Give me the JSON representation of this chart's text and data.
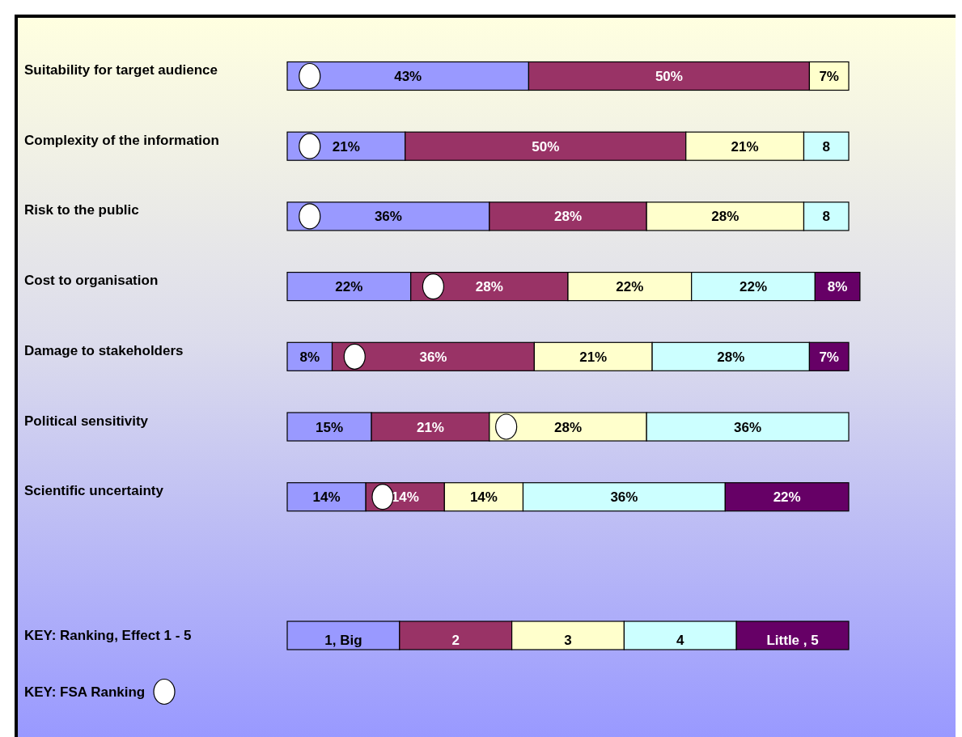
{
  "chart_data": {
    "type": "bar",
    "orientation": "horizontal",
    "stacked": true,
    "categories": [
      "Suitability for target audience",
      "Complexity of the information",
      "Risk to the public",
      "Cost to organisation",
      "Damage to stakeholders",
      "Political sensitivity",
      "Scientific uncertainty"
    ],
    "legend": "bottom",
    "legend_title": "KEY: Ranking, Effect 1 - 5",
    "marker": "circle",
    "series": [
      {
        "name": "1, Big",
        "color": "#9999ff",
        "values": [
          43,
          21,
          36,
          22,
          8,
          15,
          14
        ],
        "value_labels": [
          "43%",
          "21%",
          "36%",
          "22%",
          "8%",
          "15%",
          "14%"
        ]
      },
      {
        "name": "2",
        "color": "#993366",
        "values": [
          50,
          50,
          28,
          28,
          36,
          21,
          14
        ],
        "value_labels": [
          "50%",
          "50%",
          "28%",
          "28%",
          "36%",
          "21%",
          "14%"
        ]
      },
      {
        "name": "3",
        "color": "#ffffcc",
        "values": [
          7,
          21,
          28,
          22,
          21,
          28,
          14
        ],
        "value_labels": [
          "7%",
          "21%",
          "28%",
          "22%",
          "21%",
          "28%",
          "14%"
        ]
      },
      {
        "name": "4",
        "color": "#ccffff",
        "values": [
          null,
          8,
          8,
          22,
          28,
          36,
          36
        ],
        "value_labels": [
          null,
          "8",
          "8",
          "22%",
          "28%",
          "36%",
          "36%"
        ]
      },
      {
        "name": "Little , 5",
        "color": "#660066",
        "values": [
          null,
          null,
          null,
          8,
          7,
          null,
          22
        ],
        "value_labels": [
          null,
          null,
          null,
          "8%",
          "7%",
          null,
          "22%"
        ]
      },
      {
        "name": "KEY: FSA Ranking",
        "type": "scatter",
        "color": "#ffffff",
        "values": [
          4,
          4,
          4,
          26,
          12,
          39,
          17
        ]
      }
    ]
  }
}
